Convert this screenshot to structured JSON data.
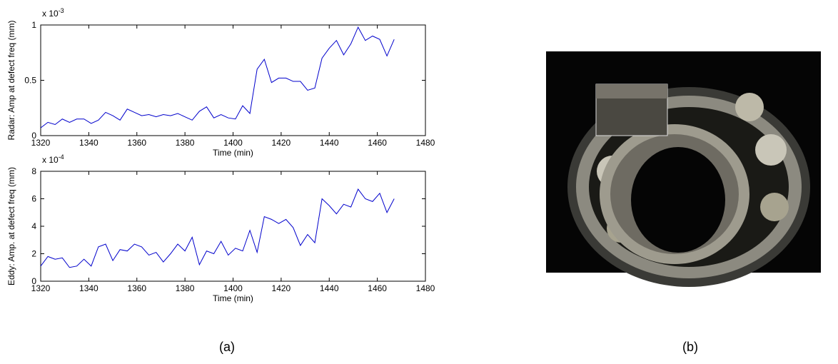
{
  "chart_data": [
    {
      "type": "line",
      "x_label": "Time (min)",
      "y_label": "Radar: Amp at defect freq (mm)",
      "y_scale_label": {
        "base": "x 10",
        "exponent": "-3"
      },
      "xlim": [
        1320,
        1480
      ],
      "xticks": [
        1320,
        1340,
        1360,
        1380,
        1400,
        1420,
        1440,
        1460,
        1480
      ],
      "ylim": [
        0,
        1
      ],
      "yticks": [
        0,
        0.5,
        1
      ],
      "x": [
        1320,
        1323,
        1326,
        1329,
        1332,
        1335,
        1338,
        1341,
        1344,
        1347,
        1350,
        1353,
        1356,
        1359,
        1362,
        1365,
        1368,
        1371,
        1374,
        1377,
        1380,
        1383,
        1386,
        1389,
        1392,
        1395,
        1398,
        1401,
        1404,
        1407,
        1410,
        1413,
        1416,
        1419,
        1422,
        1425,
        1428,
        1431,
        1434,
        1437,
        1440,
        1443,
        1446,
        1449,
        1452,
        1455,
        1458,
        1461,
        1464,
        1467
      ],
      "series": [
        {
          "color": "#0000cc",
          "values": [
            0.07,
            0.12,
            0.1,
            0.15,
            0.12,
            0.15,
            0.15,
            0.11,
            0.14,
            0.21,
            0.18,
            0.14,
            0.24,
            0.21,
            0.18,
            0.19,
            0.17,
            0.19,
            0.18,
            0.2,
            0.17,
            0.14,
            0.22,
            0.26,
            0.16,
            0.19,
            0.16,
            0.15,
            0.27,
            0.2,
            0.6,
            0.69,
            0.48,
            0.52,
            0.52,
            0.49,
            0.49,
            0.41,
            0.43,
            0.7,
            0.79,
            0.86,
            0.73,
            0.83,
            0.98,
            0.86,
            0.9,
            0.87,
            0.72,
            0.87
          ]
        }
      ]
    },
    {
      "type": "line",
      "x_label": "Time (min)",
      "y_label": "Eddy: Amp. at defect freq (mm)",
      "y_scale_label": {
        "base": "x 10",
        "exponent": "-4"
      },
      "xlim": [
        1320,
        1480
      ],
      "xticks": [
        1320,
        1340,
        1360,
        1380,
        1400,
        1420,
        1440,
        1460,
        1480
      ],
      "ylim": [
        0,
        8
      ],
      "yticks": [
        0,
        2,
        4,
        6,
        8
      ],
      "x": [
        1320,
        1323,
        1326,
        1329,
        1332,
        1335,
        1338,
        1341,
        1344,
        1347,
        1350,
        1353,
        1356,
        1359,
        1362,
        1365,
        1368,
        1371,
        1374,
        1377,
        1380,
        1383,
        1386,
        1389,
        1392,
        1395,
        1398,
        1401,
        1404,
        1407,
        1410,
        1413,
        1416,
        1419,
        1422,
        1425,
        1428,
        1431,
        1434,
        1437,
        1440,
        1443,
        1446,
        1449,
        1452,
        1455,
        1458,
        1461,
        1464,
        1467
      ],
      "series": [
        {
          "color": "#0000cc",
          "values": [
            1.1,
            1.8,
            1.6,
            1.7,
            1.0,
            1.1,
            1.6,
            1.1,
            2.5,
            2.7,
            1.5,
            2.3,
            2.2,
            2.7,
            2.5,
            1.9,
            2.1,
            1.4,
            2.0,
            2.7,
            2.2,
            3.2,
            1.2,
            2.2,
            2.0,
            2.9,
            1.9,
            2.4,
            2.2,
            3.7,
            2.1,
            4.7,
            4.5,
            4.2,
            4.5,
            3.9,
            2.6,
            3.4,
            2.8,
            6.0,
            5.5,
            4.9,
            5.6,
            5.4,
            6.7,
            6.0,
            5.8,
            6.4,
            5.0,
            6.0
          ]
        }
      ]
    }
  ],
  "captions": [
    "(a)",
    "(b)"
  ]
}
